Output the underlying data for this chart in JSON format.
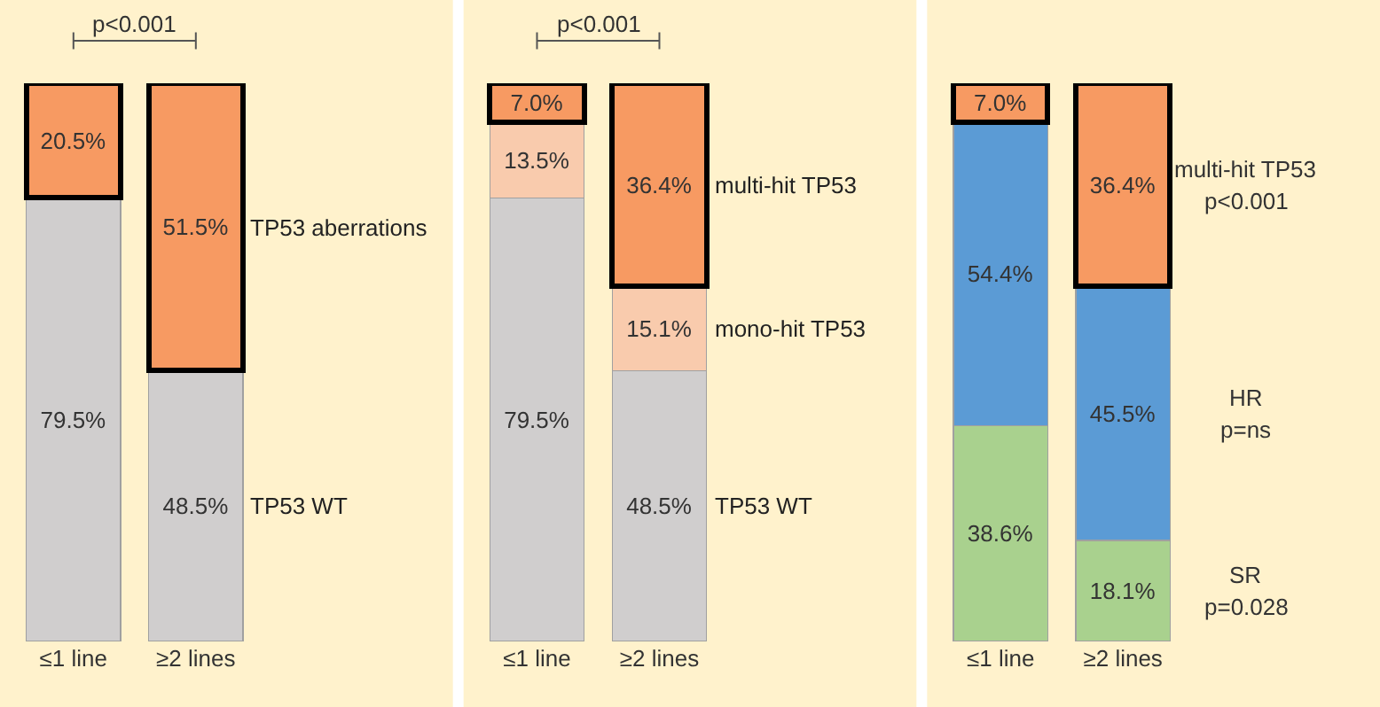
{
  "chart_data": [
    {
      "type": "bar",
      "stacked": true,
      "categories": [
        "≤1 line",
        "≥2 lines"
      ],
      "ylim": [
        0,
        100
      ],
      "annotations": [
        "p<0.001"
      ],
      "series": [
        {
          "name": "TP53 WT",
          "color": "#d0cece",
          "values": [
            79.5,
            48.5
          ],
          "value_labels": [
            "79.5%",
            "48.5%"
          ]
        },
        {
          "name": "TP53 aberrations",
          "color": "#f79a62",
          "values": [
            20.5,
            51.5
          ],
          "value_labels": [
            "20.5%",
            "51.5%"
          ]
        }
      ]
    },
    {
      "type": "bar",
      "stacked": true,
      "categories": [
        "≤1 line",
        "≥2 lines"
      ],
      "ylim": [
        0,
        100
      ],
      "annotations": [
        "p<0.001"
      ],
      "series": [
        {
          "name": "TP53 WT",
          "color": "#d0cece",
          "values": [
            79.5,
            48.5
          ],
          "value_labels": [
            "79.5%",
            "48.5%"
          ]
        },
        {
          "name": "mono-hit TP53",
          "color": "#f9cbad",
          "values": [
            13.5,
            15.1
          ],
          "value_labels": [
            "13.5%",
            "15.1%"
          ]
        },
        {
          "name": "multi-hit TP53",
          "color": "#f79a62",
          "values": [
            7.0,
            36.4
          ],
          "value_labels": [
            "7.0%",
            "36.4%"
          ]
        }
      ]
    },
    {
      "type": "bar",
      "stacked": true,
      "categories": [
        "≤1 line",
        "≥2 lines"
      ],
      "ylim": [
        0,
        100
      ],
      "annotations": [
        "p=0.028",
        "p=ns",
        "p<0.001"
      ],
      "series": [
        {
          "name": "SR",
          "color": "#a9d18e",
          "values": [
            38.6,
            18.1
          ],
          "value_labels": [
            "38.6%",
            "18.1%"
          ]
        },
        {
          "name": "HR",
          "color": "#5b9bd5",
          "values": [
            54.4,
            45.5
          ],
          "value_labels": [
            "54.4%",
            "45.5%"
          ]
        },
        {
          "name": "multi-hit TP53",
          "color": "#f79a62",
          "values": [
            7.0,
            36.4
          ],
          "value_labels": [
            "7.0%",
            "36.4%"
          ]
        }
      ]
    }
  ]
}
